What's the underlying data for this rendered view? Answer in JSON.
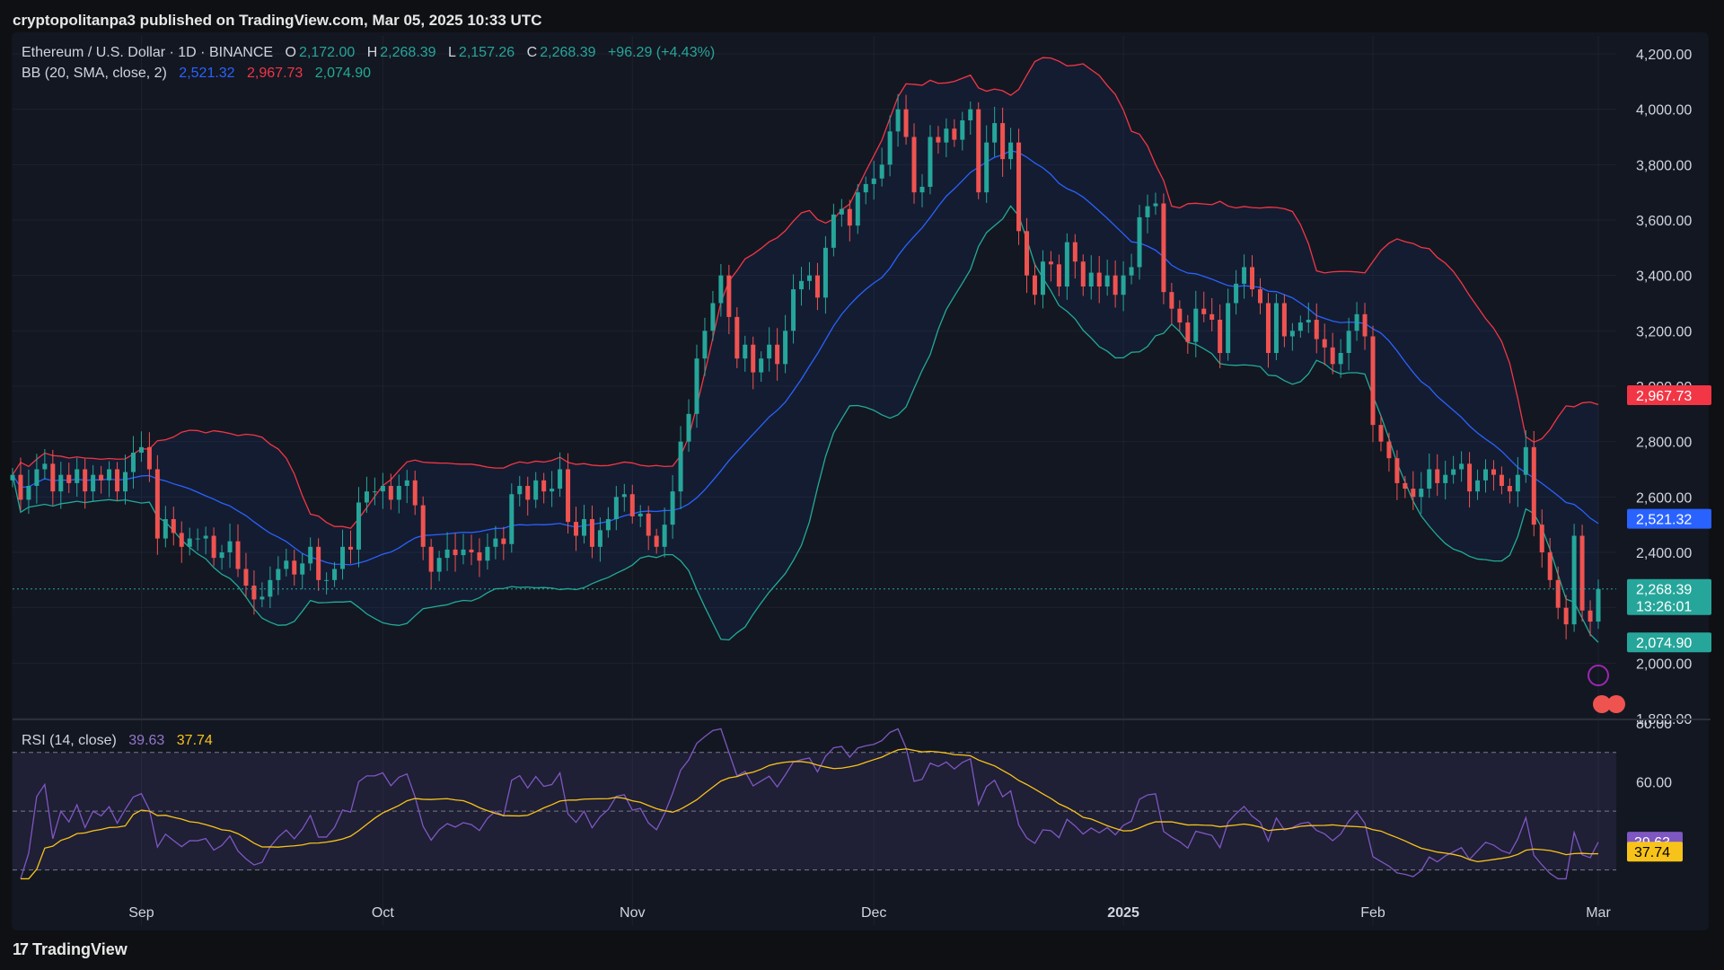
{
  "header": {
    "published": "cryptopolitanpa3 published on TradingView.com, Mar 05, 2025 10:33 UTC"
  },
  "legend": {
    "symbol": "Ethereum / U.S. Dollar · 1D · BINANCE",
    "o_label": "O",
    "o_value": "2,172.00",
    "h_label": "H",
    "h_value": "2,268.39",
    "l_label": "L",
    "l_value": "2,157.26",
    "c_label": "C",
    "c_value": "2,268.39",
    "change": "+96.29 (+4.43%)",
    "bb_label": "BB (20, SMA, close, 2)",
    "bb_basis": "2,521.32",
    "bb_upper": "2,967.73",
    "bb_lower": "2,074.90",
    "rsi_label": "RSI (14, close)",
    "rsi_value": "39.63",
    "rsi_ma": "37.74"
  },
  "footer": {
    "brand": "TradingView"
  },
  "colors": {
    "up": "#26a69a",
    "down": "#ef5350",
    "basis": "#2962ff",
    "upper": "#f23645",
    "lower": "#22ab94",
    "rsi": "#7e57c2",
    "rsi_ma": "#f7c31a",
    "grid": "#1e222d",
    "text": "#d1d4dc"
  },
  "chart_data": [
    {
      "type": "line",
      "title": "Ethereum / U.S. Dollar · 1D · BINANCE",
      "x_ticks": [
        "Sep",
        "Oct",
        "Nov",
        "Dec",
        "2025",
        "Feb",
        "Mar"
      ],
      "y_ticks": [
        "1,800.00",
        "2,000.00",
        "2,200.00",
        "2,400.00",
        "2,600.00",
        "2,800.00",
        "3,000.00",
        "3,200.00",
        "3,400.00",
        "3,600.00",
        "3,800.00",
        "4,000.00",
        "4,200.00"
      ],
      "ylim": [
        1800,
        4200
      ],
      "close_series": [
        2680,
        2590,
        2640,
        2700,
        2720,
        2620,
        2680,
        2650,
        2700,
        2620,
        2680,
        2660,
        2700,
        2620,
        2690,
        2760,
        2780,
        2700,
        2450,
        2520,
        2470,
        2420,
        2450,
        2450,
        2460,
        2380,
        2400,
        2440,
        2340,
        2280,
        2230,
        2240,
        2300,
        2340,
        2370,
        2320,
        2360,
        2420,
        2300,
        2300,
        2340,
        2420,
        2410,
        2580,
        2620,
        2620,
        2640,
        2590,
        2640,
        2660,
        2570,
        2420,
        2330,
        2380,
        2410,
        2390,
        2410,
        2400,
        2370,
        2420,
        2450,
        2430,
        2610,
        2640,
        2590,
        2660,
        2620,
        2630,
        2700,
        2510,
        2460,
        2520,
        2420,
        2480,
        2520,
        2600,
        2610,
        2530,
        2540,
        2460,
        2420,
        2500,
        2620,
        2800,
        2900,
        3100,
        3200,
        3300,
        3400,
        3250,
        3100,
        3150,
        3050,
        3100,
        3150,
        3080,
        3200,
        3350,
        3380,
        3400,
        3320,
        3500,
        3620,
        3640,
        3580,
        3700,
        3730,
        3750,
        3800,
        3920,
        4000,
        3900,
        3700,
        3720,
        3900,
        3880,
        3930,
        3890,
        3960,
        4000,
        3700,
        3880,
        3950,
        3820,
        3880,
        3560,
        3400,
        3330,
        3450,
        3440,
        3360,
        3520,
        3450,
        3360,
        3410,
        3360,
        3400,
        3330,
        3400,
        3430,
        3610,
        3650,
        3660,
        3340,
        3280,
        3230,
        3160,
        3280,
        3260,
        3240,
        3120,
        3300,
        3370,
        3430,
        3350,
        3300,
        3120,
        3300,
        3180,
        3200,
        3230,
        3240,
        3170,
        3140,
        3080,
        3120,
        3200,
        3260,
        3180,
        2860,
        2800,
        2740,
        2650,
        2630,
        2600,
        2630,
        2700,
        2650,
        2680,
        2700,
        2720,
        2620,
        2660,
        2700,
        2680,
        2640,
        2620,
        2680,
        2780,
        2500,
        2400,
        2300,
        2200,
        2140,
        2460,
        2190,
        2150,
        2268
      ],
      "bb": {
        "basis_last": 2521.32,
        "upper_last": 2967.73,
        "lower_last": 2074.9
      },
      "price_labels": {
        "upper": "2,967.73",
        "basis": "2,521.32",
        "close": "2,268.39",
        "countdown": "13:26:01",
        "lower": "2,074.90"
      }
    },
    {
      "type": "line",
      "title": "RSI (14, close)",
      "y_ticks": [
        "60.00",
        "80.00"
      ],
      "ylim": [
        25,
        80
      ],
      "bands": [
        30,
        50,
        70
      ],
      "series": [
        {
          "name": "RSI",
          "values": [
            39.63
          ]
        },
        {
          "name": "RSI MA",
          "values": [
            37.74
          ]
        }
      ],
      "price_labels": {
        "rsi": "39.63",
        "rsi_ma": "37.74"
      }
    }
  ]
}
